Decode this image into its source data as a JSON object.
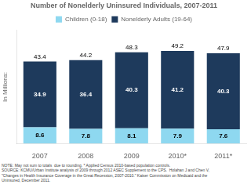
{
  "chart_data": {
    "type": "bar",
    "stacked": true,
    "title": "Number of Nonelderly Uninsured Individuals, 2007-2011",
    "ylabel": "In Millions:",
    "categories": [
      "2007",
      "2008",
      "2009",
      "2010*",
      "2011*"
    ],
    "series": [
      {
        "name": "Children (0-18)",
        "color": "#8ed8f0",
        "values": [
          8.6,
          7.8,
          8.1,
          7.9,
          7.6
        ]
      },
      {
        "name": "Nonelderly Adults (19-64)",
        "color": "#1e3a5c",
        "values": [
          34.9,
          36.4,
          40.3,
          41.2,
          40.3
        ]
      }
    ],
    "totals": [
      43.4,
      44.2,
      48.3,
      49.2,
      47.9
    ],
    "ylim": [
      0,
      60
    ],
    "grid": false,
    "legend": "top",
    "data_labels": true,
    "tick_labels": "x",
    "annotations": [
      "NOTE: May not sum to totals  due to rounding. * Applied Census 2010-based population controls.",
      "SOURCE: KCMU/Urban Institute analysis of 2009 through 2012 ASEC Supplement to the CPS.  Holahan J and Chen V,",
      "\"Changes in Health Insurance Coverage in the Great Recession, 2007-2010.\" Kaiser Commission on Medicaid and the",
      "Uninsured, December 2011."
    ]
  }
}
